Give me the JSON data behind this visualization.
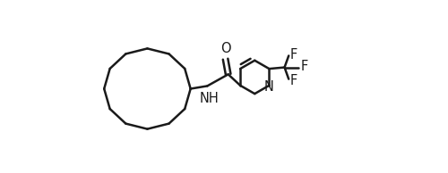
{
  "bg_color": "#ffffff",
  "line_color": "#1a1a1a",
  "line_width": 1.8,
  "font_size": 10.5,
  "figsize": [
    5.0,
    1.94
  ],
  "dpi": 100,
  "xlim": [
    0,
    10.0
  ],
  "ylim": [
    -1.0,
    3.8
  ]
}
